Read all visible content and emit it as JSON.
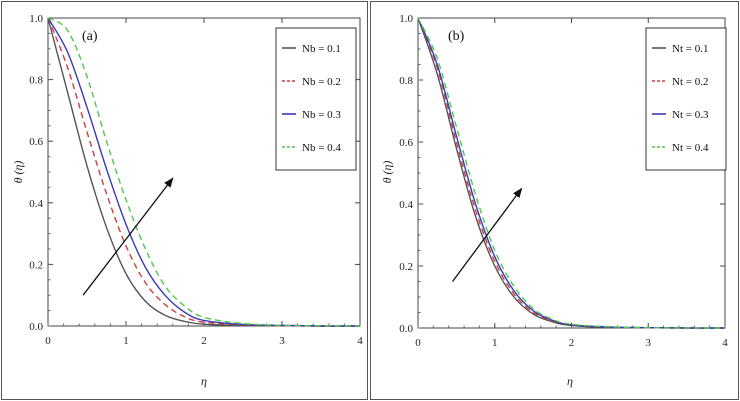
{
  "chart_data": [
    {
      "type": "line",
      "panel_label": "(a)",
      "xlabel": "η",
      "ylabel": "θ (η)",
      "xlim": [
        0,
        4
      ],
      "ylim": [
        0,
        1
      ],
      "xticks": [
        "0",
        "1",
        "2",
        "3",
        "4"
      ],
      "yticks": [
        "0.0",
        "0.2",
        "0.4",
        "0.6",
        "0.8",
        "1.0"
      ],
      "legend_position": "top-right",
      "x": [
        0,
        0.25,
        0.5,
        0.75,
        1.0,
        1.25,
        1.5,
        1.75,
        2.0,
        2.5,
        3.0,
        3.5,
        4.0
      ],
      "series": [
        {
          "name": "Nb = 0.1",
          "color": "#555555",
          "dash": "solid",
          "values": [
            1.0,
            0.76,
            0.52,
            0.32,
            0.17,
            0.08,
            0.035,
            0.015,
            0.006,
            0.002,
            0.001,
            0.0,
            0.0
          ]
        },
        {
          "name": "Nb = 0.2",
          "color": "#d43c3c",
          "dash": "dashed",
          "values": [
            1.0,
            0.84,
            0.63,
            0.43,
            0.26,
            0.14,
            0.07,
            0.03,
            0.012,
            0.004,
            0.001,
            0.0,
            0.0
          ]
        },
        {
          "name": "Nb = 0.3",
          "color": "#3a3ab8",
          "dash": "solid",
          "values": [
            1.0,
            0.89,
            0.71,
            0.51,
            0.33,
            0.19,
            0.1,
            0.045,
            0.018,
            0.005,
            0.002,
            0.0,
            0.0
          ]
        },
        {
          "name": "Nb = 0.4",
          "color": "#4cc94c",
          "dash": "dashed",
          "values": [
            1.0,
            0.96,
            0.81,
            0.6,
            0.41,
            0.25,
            0.13,
            0.065,
            0.028,
            0.008,
            0.002,
            0.001,
            0.0
          ]
        }
      ],
      "annotations": [
        {
          "type": "arrow",
          "from": [
            0.45,
            0.1
          ],
          "to": [
            1.6,
            0.48
          ]
        }
      ]
    },
    {
      "type": "line",
      "panel_label": "(b)",
      "xlabel": "η",
      "ylabel": "θ (η)",
      "xlim": [
        0,
        4
      ],
      "ylim": [
        0,
        1
      ],
      "xticks": [
        "0",
        "1",
        "2",
        "3",
        "4"
      ],
      "yticks": [
        "0.0",
        "0.2",
        "0.4",
        "0.6",
        "0.8",
        "1.0"
      ],
      "legend_position": "top-right",
      "x": [
        0,
        0.25,
        0.5,
        0.75,
        1.0,
        1.25,
        1.5,
        1.75,
        2.0,
        2.5,
        3.0,
        3.5,
        4.0
      ],
      "series": [
        {
          "name": "Nt = 0.1",
          "color": "#555555",
          "dash": "solid",
          "values": [
            1.0,
            0.82,
            0.58,
            0.36,
            0.2,
            0.1,
            0.045,
            0.02,
            0.008,
            0.002,
            0.001,
            0.0,
            0.0
          ]
        },
        {
          "name": "Nt = 0.2",
          "color": "#d43c3c",
          "dash": "dashed",
          "values": [
            1.0,
            0.84,
            0.6,
            0.38,
            0.215,
            0.11,
            0.05,
            0.022,
            0.009,
            0.003,
            0.001,
            0.0,
            0.0
          ]
        },
        {
          "name": "Nt = 0.3",
          "color": "#3a3ab8",
          "dash": "solid",
          "values": [
            1.0,
            0.85,
            0.62,
            0.4,
            0.23,
            0.12,
            0.056,
            0.025,
            0.01,
            0.003,
            0.001,
            0.0,
            0.0
          ]
        },
        {
          "name": "Nt = 0.4",
          "color": "#4cc94c",
          "dash": "dashed",
          "values": [
            1.0,
            0.87,
            0.65,
            0.43,
            0.25,
            0.135,
            0.063,
            0.028,
            0.012,
            0.004,
            0.001,
            0.0,
            0.0
          ]
        }
      ],
      "annotations": [
        {
          "type": "arrow",
          "from": [
            0.45,
            0.15
          ],
          "to": [
            1.35,
            0.45
          ]
        }
      ]
    }
  ]
}
